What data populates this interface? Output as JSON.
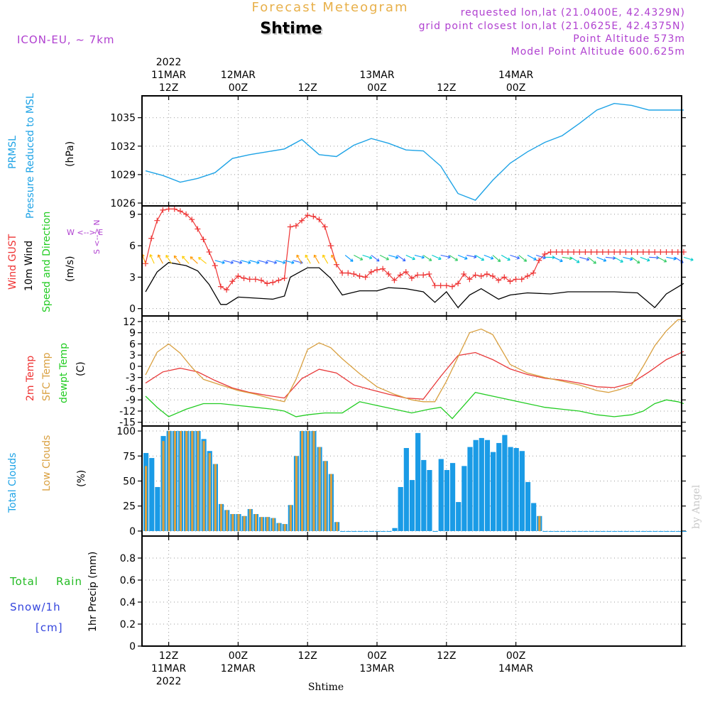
{
  "header": {
    "meteogram_title": "Forecast Meteogram",
    "location_name": "Shtime",
    "model_label": "ICON-EU, ~ 7km",
    "requested": "requested lon,lat (21.0400E, 42.4329N)",
    "grid_point": "grid point closest lon,lat (21.0625E, 42.4375N)",
    "point_altitude": "Point Altitude 573m",
    "model_altitude": "Model Point Altitude 600.625m",
    "credit": "by Angel",
    "footer_location": "Shtime"
  },
  "time_axis": {
    "top_labels": [
      {
        "line1": "2022",
        "line2": "11MAR",
        "line3": "12Z"
      },
      {
        "line1": "",
        "line2": "12MAR",
        "line3": "00Z"
      },
      {
        "line1": "",
        "line2": "",
        "line3": "12Z"
      },
      {
        "line1": "",
        "line2": "13MAR",
        "line3": "00Z"
      },
      {
        "line1": "",
        "line2": "",
        "line3": "12Z"
      },
      {
        "line1": "",
        "line2": "14MAR",
        "line3": "00Z"
      }
    ],
    "bottom_labels": [
      {
        "line1": "12Z",
        "line2": "11MAR",
        "line3": "2022"
      },
      {
        "line1": "00Z",
        "line2": "12MAR",
        "line3": ""
      },
      {
        "line1": "12Z",
        "line2": "",
        "line3": ""
      },
      {
        "line1": "00Z",
        "line2": "13MAR",
        "line3": ""
      },
      {
        "line1": "12Z",
        "line2": "",
        "line3": ""
      },
      {
        "line1": "00Z",
        "line2": "14MAR",
        "line3": ""
      }
    ]
  },
  "panel_labels": {
    "pressure": {
      "line1": "PRMSL",
      "line2": "Pressure Reduced to MSL",
      "unit": "(hPa)"
    },
    "wind": {
      "gust": "Wind GUST",
      "wind10": "10m Wind",
      "speed_dir": "Speed and Direction",
      "unit": "(m/s)",
      "compass_ns": "S <--> N",
      "compass_ew": "W <--> E"
    },
    "temp": {
      "t2m": "2m Temp",
      "sfc": "SFC Temp",
      "dewpt": "dewpt Temp",
      "unit": "(C)"
    },
    "clouds": {
      "total": "Total Clouds",
      "low": "Low Clouds",
      "unit": "(%)"
    },
    "precip": {
      "total": "Total",
      "rain": "Rain",
      "snow": "Snow/1h",
      "snow_unit": "[cm]",
      "axis": "1hr Precip (mm)"
    }
  },
  "colors": {
    "pressure": "#1ea3e6",
    "gust": "#ee3333",
    "wind10": "#000000",
    "t2m": "#e83a3a",
    "sfc": "#d9a040",
    "dewpt": "#22cc22",
    "total_clouds": "#1a9be6",
    "low_clouds": "#d9a040",
    "rain": "#22bb22",
    "snow": "#3344dd",
    "header_orange": "#e8b04a",
    "header_purple": "#b040d0",
    "credit": "#c8c8c8"
  },
  "chart_data": [
    {
      "type": "line",
      "title": "PRMSL Pressure Reduced to MSL",
      "ylabel": "(hPa)",
      "ylim": [
        1025.7,
        1037.3
      ],
      "yticks": [
        1026,
        1029,
        1032,
        1035
      ],
      "x_hours": [
        0,
        3,
        6,
        9,
        12,
        15,
        18,
        21,
        24,
        27,
        30,
        33,
        36,
        39,
        42,
        45,
        48,
        51,
        54,
        57,
        60,
        63,
        66,
        69,
        72,
        75,
        78,
        81,
        84,
        87,
        93
      ],
      "values": [
        1029.4,
        1028.9,
        1028.2,
        1028.6,
        1029.2,
        1030.7,
        1031.1,
        1031.4,
        1031.7,
        1032.7,
        1031.1,
        1030.9,
        1032.1,
        1032.8,
        1032.3,
        1031.6,
        1031.5,
        1029.9,
        1027.0,
        1026.3,
        1028.4,
        1030.2,
        1031.4,
        1032.4,
        1033.1,
        1034.4,
        1035.8,
        1036.5,
        1036.3,
        1035.8,
        1035.8
      ]
    },
    {
      "type": "line",
      "title": "Wind GUST / 10m Wind Speed and Direction",
      "ylabel": "(m/s)",
      "ylim": [
        -0.7,
        9.8
      ],
      "yticks": [
        0,
        3,
        6,
        9
      ],
      "series": [
        {
          "name": "Wind GUST",
          "x_hours": [
            0,
            1,
            2,
            3,
            4,
            5,
            6,
            7,
            8,
            9,
            10,
            11,
            12,
            13,
            14,
            15,
            16,
            17,
            18,
            19,
            20,
            21,
            22,
            23,
            24,
            25,
            26,
            27,
            28,
            29,
            30,
            31,
            32,
            33,
            34,
            35,
            36,
            37,
            38,
            39,
            40,
            41,
            42,
            43,
            44,
            45,
            46,
            47,
            48,
            49,
            50,
            51,
            52,
            53,
            54,
            55,
            56,
            57,
            58,
            59,
            60,
            61,
            62,
            63,
            64,
            65,
            66,
            67,
            68,
            69,
            70,
            71,
            72,
            73,
            74,
            75,
            76,
            77,
            78,
            79,
            80,
            81,
            82,
            83,
            84,
            85,
            86,
            87,
            88,
            89,
            90,
            91,
            92,
            93
          ],
          "values": [
            4.3,
            6.7,
            8.4,
            9.4,
            9.5,
            9.5,
            9.3,
            9.0,
            8.5,
            7.6,
            6.6,
            5.4,
            4.1,
            2.1,
            1.8,
            2.6,
            3.1,
            2.9,
            2.8,
            2.8,
            2.7,
            2.4,
            2.5,
            2.7,
            2.9,
            7.8,
            7.9,
            8.4,
            8.9,
            8.8,
            8.5,
            7.8,
            6.0,
            4.2,
            3.4,
            3.4,
            3.3,
            3.1,
            3.0,
            3.5,
            3.7,
            3.8,
            3.3,
            2.7,
            3.2,
            3.5,
            2.9,
            3.2,
            3.2,
            3.3,
            2.2,
            2.2,
            2.2,
            2.1,
            2.4,
            3.3,
            2.8,
            3.2,
            3.1,
            3.3,
            3.1,
            2.7,
            3.0,
            2.6,
            2.8,
            2.8,
            3.1,
            3.4,
            4.6,
            5.2,
            5.4,
            5.4,
            5.4,
            5.4,
            5.4,
            5.4,
            5.4,
            5.4,
            5.4,
            5.4,
            5.4,
            5.4,
            5.4,
            5.4,
            5.4,
            5.4,
            5.4,
            5.4,
            5.4,
            5.4,
            5.4,
            5.4,
            5.4,
            5.4
          ]
        },
        {
          "name": "10m Wind",
          "x_hours": [
            0,
            2,
            4,
            7,
            9,
            11,
            13,
            14,
            16,
            19,
            22,
            24,
            25,
            28,
            30,
            32,
            34,
            37,
            40,
            42,
            45,
            48,
            50,
            52,
            54,
            56,
            58,
            61,
            63,
            66,
            70,
            73,
            77,
            81,
            85,
            88,
            90,
            93
          ],
          "values": [
            1.6,
            3.5,
            4.4,
            4.1,
            3.6,
            2.3,
            0.4,
            0.4,
            1.1,
            1.0,
            0.9,
            1.2,
            3.0,
            3.9,
            3.9,
            2.9,
            1.3,
            1.7,
            1.7,
            2.0,
            1.9,
            1.6,
            0.6,
            1.6,
            0.1,
            1.3,
            1.9,
            0.9,
            1.3,
            1.5,
            1.4,
            1.6,
            1.6,
            1.6,
            1.5,
            0.1,
            1.4,
            2.4
          ]
        }
      ]
    },
    {
      "type": "line",
      "title": "2m Temp / SFC Temp / dewpt Temp",
      "ylabel": "(C)",
      "ylim": [
        -16,
        13.5
      ],
      "yticks": [
        -15,
        -12,
        -9,
        -6,
        -3,
        0,
        3,
        6,
        9,
        12
      ],
      "series": [
        {
          "name": "2m Temp",
          "x_hours": [
            0,
            3,
            6,
            9,
            12,
            15,
            18,
            21,
            24,
            27,
            30,
            33,
            36,
            39,
            42,
            45,
            48,
            51,
            54,
            57,
            60,
            63,
            66,
            69,
            72,
            75,
            78,
            81,
            84,
            87,
            90,
            93
          ],
          "values": [
            -4.5,
            -1.5,
            -0.5,
            -1.5,
            -3.8,
            -5.8,
            -7.0,
            -7.8,
            -8.5,
            -3.3,
            -0.8,
            -1.8,
            -5.0,
            -6.3,
            -7.5,
            -8.5,
            -8.8,
            -2.7,
            2.9,
            3.7,
            1.8,
            -0.7,
            -2.2,
            -3.2,
            -3.7,
            -4.5,
            -5.5,
            -5.7,
            -4.5,
            -1.5,
            1.8,
            4.0
          ]
        },
        {
          "name": "SFC Temp",
          "x_hours": [
            0,
            2,
            4,
            6,
            8,
            10,
            13,
            16,
            19,
            22,
            24,
            26,
            28,
            30,
            32,
            34,
            37,
            40,
            43,
            46,
            48,
            50,
            52,
            54,
            56,
            58,
            60,
            63,
            66,
            69,
            72,
            75,
            78,
            80,
            82,
            84,
            86,
            88,
            90,
            92,
            93
          ],
          "values": [
            -2.3,
            3.8,
            6.0,
            3.5,
            -0.3,
            -3.5,
            -5.0,
            -6.5,
            -7.5,
            -8.8,
            -9.5,
            -3.5,
            4.5,
            6.3,
            5.0,
            2.0,
            -2.0,
            -5.5,
            -7.5,
            -9.0,
            -9.5,
            -9.5,
            -4.0,
            2.5,
            9.0,
            10.0,
            8.5,
            0.5,
            -1.8,
            -3.0,
            -4.0,
            -5.0,
            -6.5,
            -7.0,
            -6.2,
            -5.0,
            0.0,
            5.5,
            9.5,
            12.5,
            12.5
          ]
        },
        {
          "name": "dewpt Temp",
          "x_hours": [
            0,
            2,
            4,
            7,
            10,
            13,
            16,
            19,
            22,
            24,
            26,
            28,
            31,
            34,
            37,
            40,
            43,
            46,
            49,
            51,
            53,
            55,
            57,
            60,
            63,
            66,
            69,
            72,
            75,
            78,
            81,
            84,
            86,
            88,
            90,
            92,
            93
          ],
          "values": [
            -8.0,
            -11.0,
            -13.5,
            -11.5,
            -10.0,
            -10.0,
            -10.5,
            -11.0,
            -11.5,
            -12.0,
            -13.5,
            -13.0,
            -12.5,
            -12.5,
            -9.5,
            -10.5,
            -11.5,
            -12.5,
            -11.5,
            -11.0,
            -14.0,
            -10.5,
            -7.0,
            -8.0,
            -9.0,
            -10.0,
            -11.0,
            -11.5,
            -12.0,
            -13.0,
            -13.5,
            -13.0,
            -12.0,
            -10.0,
            -9.0,
            -9.5,
            -10.0
          ]
        }
      ]
    },
    {
      "type": "bar",
      "title": "Total Clouds / Low Clouds",
      "ylabel": "(%)",
      "ylim": [
        -5,
        105
      ],
      "yticks": [
        0,
        25,
        50,
        75,
        100
      ],
      "x_hours": [
        0,
        1,
        2,
        3,
        4,
        5,
        6,
        7,
        8,
        9,
        10,
        11,
        12,
        13,
        14,
        15,
        16,
        17,
        18,
        19,
        20,
        21,
        22,
        23,
        24,
        25,
        26,
        27,
        28,
        29,
        30,
        31,
        32,
        33,
        34,
        35,
        36,
        37,
        38,
        39,
        40,
        41,
        42,
        43,
        44,
        45,
        46,
        47,
        48,
        49,
        50,
        51,
        52,
        53,
        54,
        55,
        56,
        57,
        58,
        59,
        60,
        61,
        62,
        63,
        64,
        65,
        66,
        67,
        68,
        69,
        70,
        71,
        72,
        73,
        74,
        75,
        76,
        77,
        78,
        79,
        80,
        81,
        82,
        83,
        84,
        85,
        86,
        87,
        88,
        89,
        90,
        91,
        92,
        93
      ],
      "series": [
        {
          "name": "Total Clouds",
          "values": [
            78,
            73,
            44,
            95,
            100,
            100,
            100,
            100,
            100,
            100,
            92,
            80,
            67,
            27,
            21,
            17,
            17,
            15,
            22,
            17,
            14,
            14,
            13,
            8,
            7,
            26,
            75,
            100,
            100,
            100,
            84,
            70,
            57,
            9,
            0,
            0,
            0,
            0,
            0,
            0,
            0,
            0,
            0,
            3,
            44,
            83,
            51,
            98,
            71,
            61,
            0,
            72,
            61,
            68,
            29,
            65,
            84,
            91,
            93,
            91,
            79,
            88,
            96,
            84,
            83,
            80,
            49,
            28,
            15,
            0,
            0,
            0,
            0,
            0,
            0,
            0,
            0,
            0,
            0,
            0,
            0,
            0,
            0,
            0,
            0,
            0,
            0,
            0,
            0,
            0,
            0,
            0,
            0,
            0
          ]
        },
        {
          "name": "Low Clouds",
          "values": [
            65,
            0,
            0,
            90,
            100,
            100,
            100,
            100,
            100,
            100,
            90,
            78,
            67,
            27,
            21,
            17,
            17,
            15,
            22,
            17,
            14,
            14,
            13,
            8,
            7,
            26,
            75,
            100,
            100,
            100,
            84,
            70,
            57,
            9,
            0,
            0,
            0,
            0,
            0,
            0,
            0,
            0,
            0,
            0,
            0,
            0,
            0,
            0,
            0,
            0,
            0,
            0,
            0,
            0,
            0,
            0,
            0,
            0,
            0,
            0,
            0,
            0,
            0,
            0,
            0,
            0,
            0,
            0,
            15,
            0,
            0,
            0,
            0,
            0,
            0,
            0,
            0,
            0,
            0,
            0,
            0,
            0,
            0,
            0,
            0,
            0,
            0,
            0,
            0,
            0,
            0,
            0,
            0,
            0
          ]
        }
      ]
    },
    {
      "type": "line",
      "title": "1hr Precip (mm)",
      "ylabel": "1hr Precip (mm)",
      "ylim": [
        0,
        1.0
      ],
      "yticks": [
        0,
        0.2,
        0.4,
        0.6,
        0.8
      ],
      "ytick_labels": [
        "0",
        "0.2",
        "0.4",
        "0.6",
        "0.8"
      ],
      "series": [
        {
          "name": "Total Rain",
          "values": []
        },
        {
          "name": "Snow/1h",
          "values": []
        }
      ]
    }
  ]
}
